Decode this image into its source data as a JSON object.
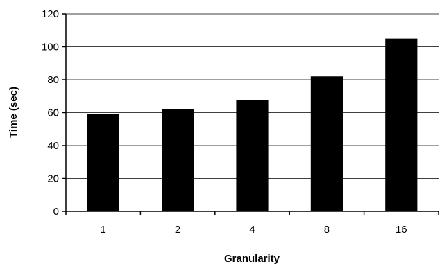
{
  "chart_data": {
    "type": "bar",
    "categories": [
      "1",
      "2",
      "4",
      "8",
      "16"
    ],
    "values": [
      59,
      62,
      67.5,
      82,
      105
    ],
    "xlabel": "Granularity",
    "ylabel": "Time (sec)",
    "ylim": [
      0,
      120
    ],
    "yticks": [
      "0",
      "20",
      "40",
      "60",
      "80",
      "100",
      "120"
    ],
    "grid": "horizontal",
    "bar_color": "#000000",
    "grid_color": "#000000"
  }
}
